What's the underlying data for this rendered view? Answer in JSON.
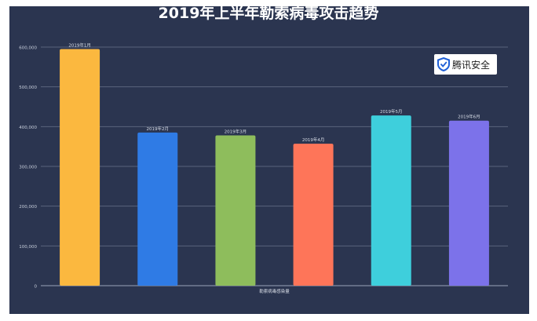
{
  "chart_data": {
    "type": "bar",
    "title": "2019年上半年勒索病毒攻击趋势",
    "xlabel": "勒索病毒感染量",
    "ylabel": "",
    "categories": [
      "2019年1月",
      "2019年2月",
      "2019年3月",
      "2019年4月",
      "2019年5月",
      "2019年6月"
    ],
    "values": [
      595000,
      385000,
      378000,
      357000,
      428000,
      415000
    ],
    "ylim": [
      0,
      600000
    ],
    "yticks": [
      "0",
      "100,000",
      "200,000",
      "300,000",
      "400,000",
      "500,000",
      "600,000"
    ],
    "bar_colors": [
      "#fbb83f",
      "#2f7be5",
      "#8ebd5c",
      "#fe7559",
      "#3ecfdc",
      "#7c72ea"
    ],
    "grid": true,
    "legend": "none"
  },
  "logo": {
    "text": "腾讯安全",
    "icon": "tencent-security-shield-icon",
    "color": "#1f5fd6"
  }
}
